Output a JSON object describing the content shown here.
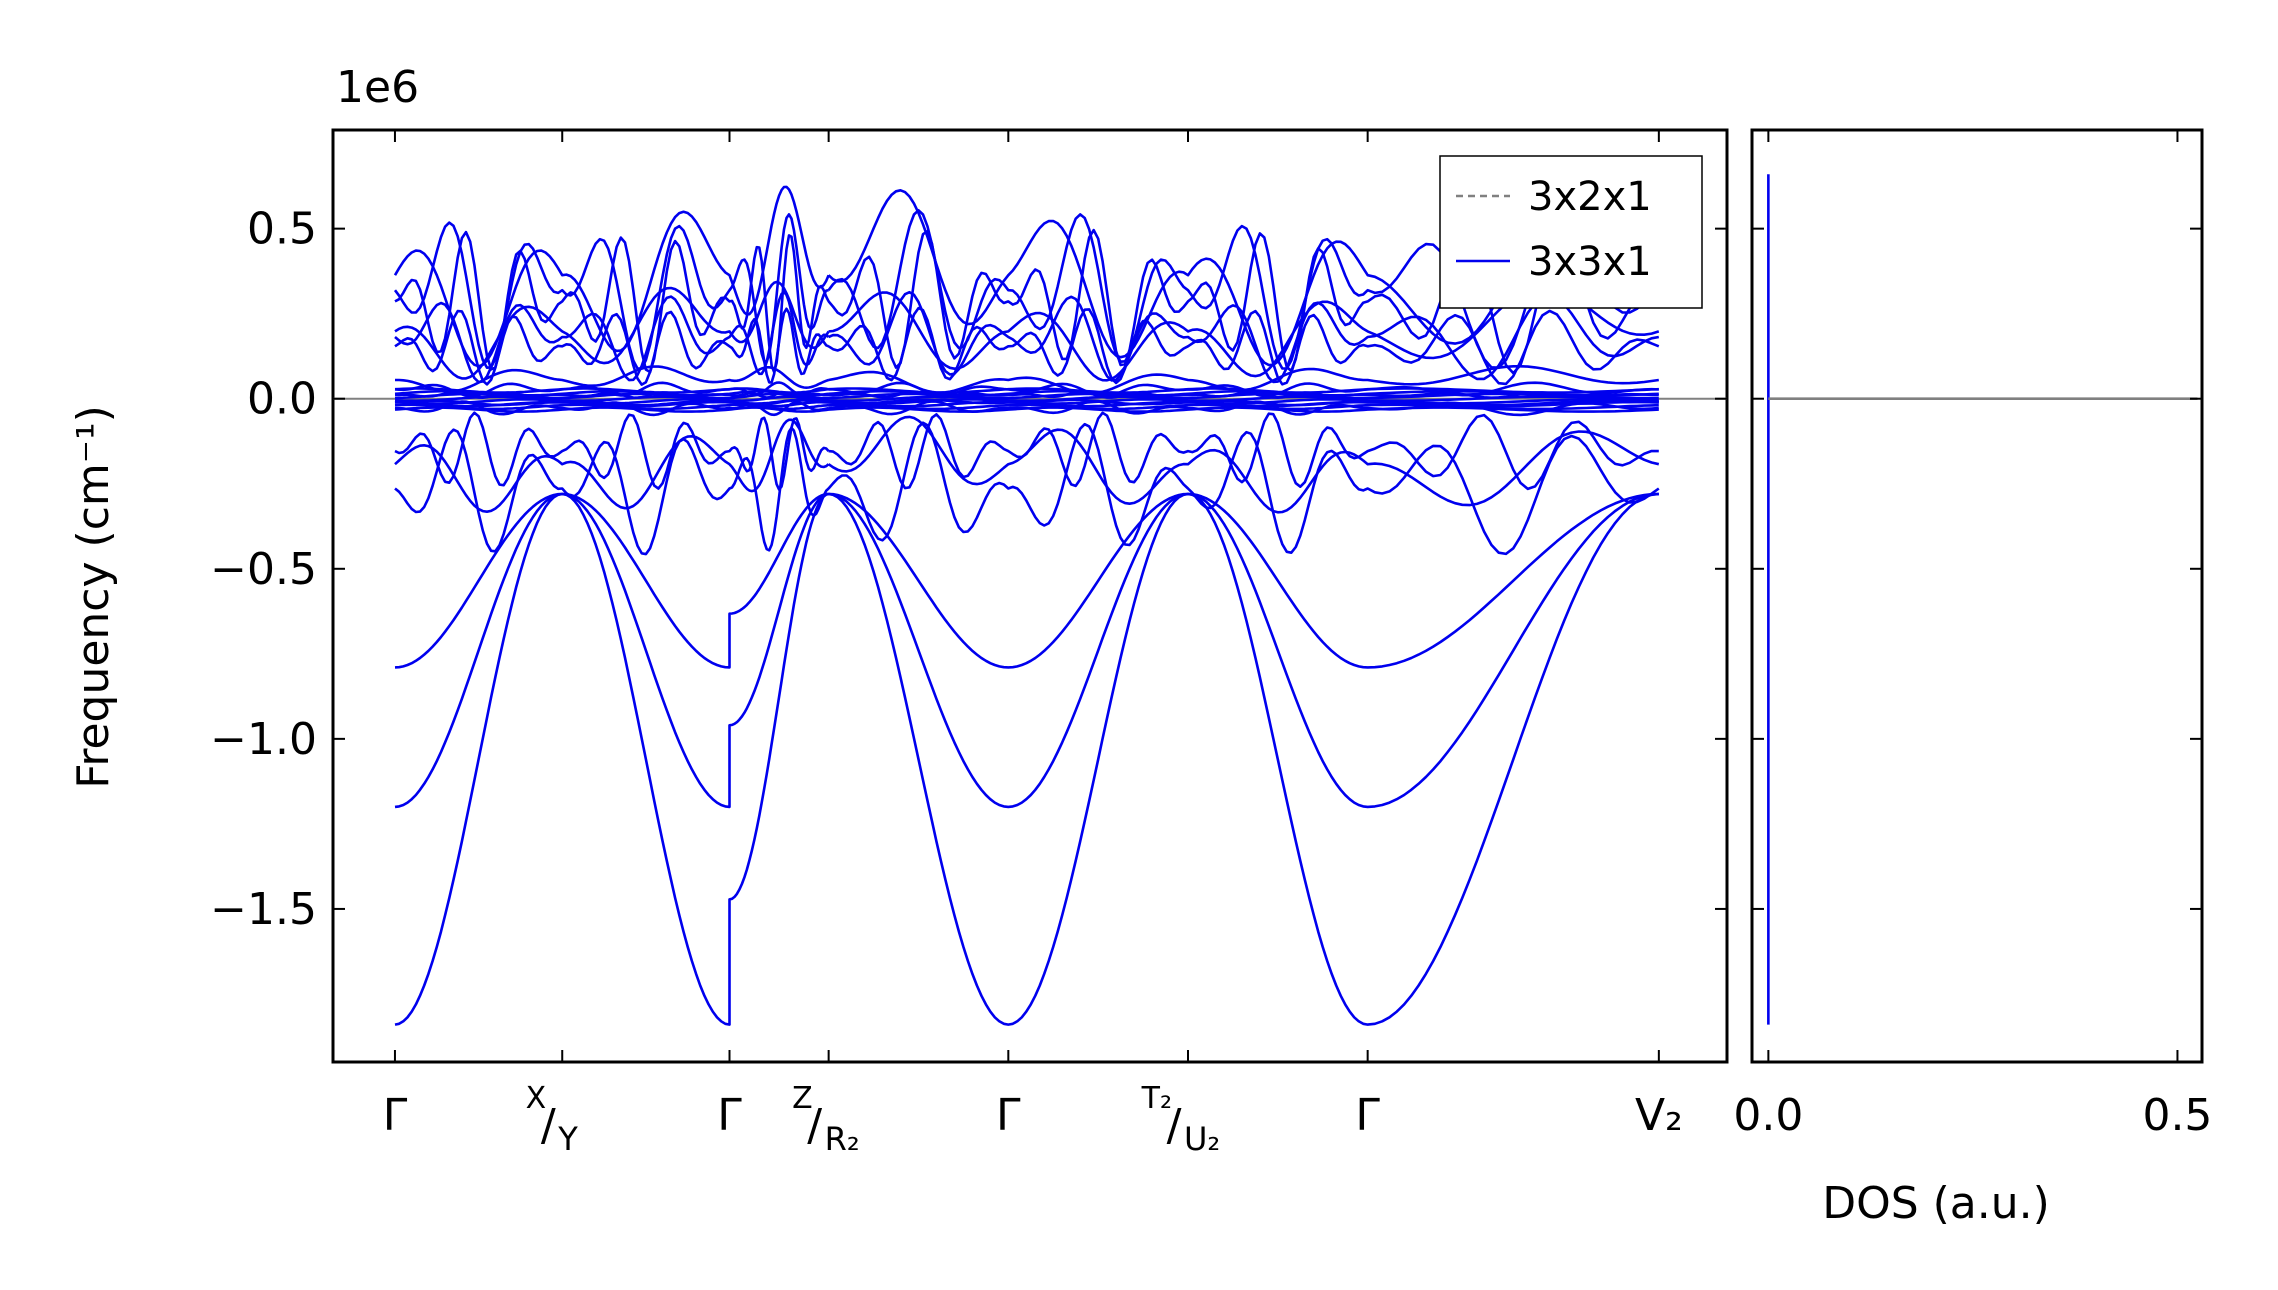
{
  "chart_data": [
    {
      "type": "line",
      "panel": "band-structure",
      "ylabel": "Frequency (cm⁻¹)",
      "offset_text": "1e6",
      "ylim": [
        -1.95,
        0.79
      ],
      "xlim": [
        -0.1,
        2.15
      ],
      "yticks": [
        0.5,
        0.0,
        -0.5,
        -1.0,
        -1.5
      ],
      "ytick_labels": [
        "0.5",
        "0.0",
        "−0.5",
        "−1.0",
        "−1.5"
      ],
      "xtick_labels": [
        "Γ",
        "X/Y",
        "Γ",
        "Z/R₂",
        "Γ",
        "T₂/U₂",
        "Γ",
        "V₂"
      ],
      "kpoint_positions": [
        0.0,
        0.27,
        0.54,
        0.7,
        0.99,
        1.28,
        1.57,
        2.04
      ],
      "segment_breaks": [
        0.7
      ],
      "zero_line": {
        "y": 0.0,
        "color": "#808080"
      },
      "legend": {
        "position": "top-right",
        "entries": [
          "3x2x1",
          "3x3x1"
        ]
      },
      "series": [
        {
          "name": "3x3x1",
          "color": "#0000ee",
          "style": "solid",
          "band_extrema": [
            0.66,
            0.58,
            0.52,
            0.36,
            0.33,
            0.28,
            0.1,
            0.05,
            0.02,
            -0.02,
            -0.05,
            -0.28,
            -0.35,
            -0.48,
            -0.56,
            -0.79,
            -1.2,
            -1.84
          ]
        },
        {
          "name": "3x2x1",
          "color": "#808080",
          "style": "dashed",
          "values_near": 0.0
        }
      ]
    },
    {
      "type": "line",
      "panel": "dos",
      "xlabel": "DOS (a.u.)",
      "xlim": [
        -0.02,
        0.53
      ],
      "ylim": [
        -1.95,
        0.79
      ],
      "xticks": [
        0.0,
        0.5
      ],
      "xtick_labels": [
        "0.0",
        "0.5"
      ],
      "series": [
        {
          "name": "3x3x1",
          "color": "#0000ee",
          "x": 0.0,
          "y_range": [
            -1.84,
            0.66
          ]
        },
        {
          "name": "3x2x1",
          "color": "#808080",
          "x": [
            0.0,
            0.5
          ],
          "y": [
            0.0,
            0.0
          ]
        }
      ]
    }
  ]
}
